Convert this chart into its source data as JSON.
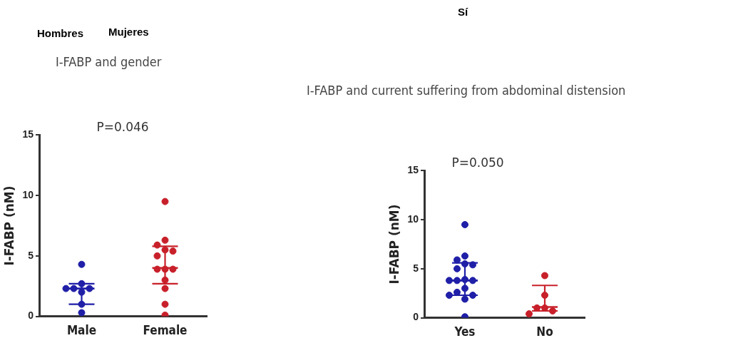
{
  "chart_data": [
    {
      "type": "scatter",
      "title": "I-FABP and gender",
      "ylabel": "I-FABP (nM)",
      "categories": [
        "Male",
        "Female"
      ],
      "ylim": [
        0,
        15
      ],
      "yticks": [
        0,
        5,
        10,
        15
      ],
      "grid": false,
      "legend": false,
      "marker": "circle",
      "annotations": [
        "Hombres",
        "Mujeres",
        "P=0.046"
      ],
      "series": [
        {
          "color": "#1f1fa8",
          "x": [
            "Male",
            "Male",
            "Male",
            "Male",
            "Male",
            "Male",
            "Male",
            "Male"
          ],
          "values": [
            4.3,
            2.7,
            2.3,
            2.3,
            2.3,
            2.0,
            1.0,
            0.3
          ]
        },
        {
          "color": "#c8202a",
          "x": [
            "Female",
            "Female",
            "Female",
            "Female",
            "Female",
            "Female",
            "Female",
            "Female",
            "Female",
            "Female",
            "Female",
            "Female",
            "Female"
          ],
          "values": [
            9.5,
            6.3,
            5.9,
            5.5,
            5.4,
            5.0,
            3.9,
            3.9,
            3.9,
            3.0,
            2.3,
            1.0,
            0.1
          ]
        },
        {
          "type": "box",
          "color": "#1f1fa8",
          "boxes": [
            {
              "low": 1.0,
              "q1": 1.0,
              "median": 2.3,
              "q3": 2.7,
              "high": 2.7
            },
            null
          ]
        },
        {
          "type": "box",
          "color": "#c8202a",
          "boxes": [
            null,
            {
              "low": 2.7,
              "q1": 2.7,
              "median": 4.0,
              "q3": 5.8,
              "high": 5.8
            }
          ]
        }
      ]
    },
    {
      "type": "scatter",
      "title": "I-FABP and current suffering from abdominal distension",
      "ylabel": "I-FABP (nM)",
      "categories": [
        "Yes",
        "No"
      ],
      "ylim": [
        0,
        15
      ],
      "yticks": [
        0,
        5,
        10,
        15
      ],
      "grid": false,
      "legend": false,
      "marker": "circle",
      "annotations": [
        "Sí",
        "P=0.050"
      ],
      "series": [
        {
          "color": "#1f1fa8",
          "x": [
            "Yes",
            "Yes",
            "Yes",
            "Yes",
            "Yes",
            "Yes",
            "Yes",
            "Yes",
            "Yes",
            "Yes",
            "Yes",
            "Yes",
            "Yes",
            "Yes",
            "Yes",
            "Yes"
          ],
          "values": [
            9.5,
            6.3,
            5.9,
            5.5,
            5.4,
            5.0,
            3.9,
            3.8,
            3.8,
            3.8,
            3.0,
            2.6,
            2.3,
            2.3,
            1.9,
            0.1
          ]
        },
        {
          "color": "#c8202a",
          "x": [
            "No",
            "No",
            "No",
            "No",
            "No",
            "No"
          ],
          "values": [
            4.3,
            2.3,
            1.0,
            1.0,
            0.7,
            0.4
          ]
        },
        {
          "type": "box",
          "color": "#1f1fa8",
          "boxes": [
            {
              "low": 2.3,
              "q1": 2.3,
              "median": 3.8,
              "q3": 5.6,
              "high": 5.6
            },
            null
          ]
        },
        {
          "type": "box",
          "color": "#c8202a",
          "boxes": [
            null,
            {
              "low": 0.7,
              "q1": 0.7,
              "median": 1.1,
              "q3": 3.3,
              "high": 3.3
            }
          ]
        }
      ]
    }
  ]
}
